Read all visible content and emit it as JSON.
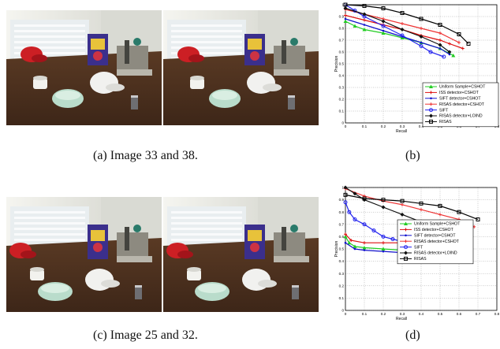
{
  "captions": {
    "a": "(a) Image 33 and 38.",
    "b": "(b)",
    "c": "(c) Image 25 and 32.",
    "d": "(d)"
  },
  "colors": {
    "wall": "#ecece6",
    "table": "#3d2618",
    "bowl": "#b9dccb",
    "cap_red": "#cc1f24",
    "cap_white": "#f1f1ef",
    "cereal_box": "#3b2f8c"
  },
  "chart_data": [
    {
      "type": "line",
      "xlabel": "Recall",
      "ylabel": "Precision",
      "xlim": [
        0,
        0.8
      ],
      "ylim": [
        0,
        1
      ],
      "xticks": [
        "0",
        "0.1",
        "0.2",
        "0.3",
        "0.4",
        "0.5",
        "0.6",
        "0.7",
        "0.8"
      ],
      "yticks": [
        "0",
        "0.1",
        "0.2",
        "0.3",
        "0.4",
        "0.5",
        "0.6",
        "0.7",
        "0.8",
        "0.9",
        "1"
      ],
      "grid": true,
      "legend_position": "bottom-right",
      "series": [
        {
          "name": "Uniform Sample+CSHOT",
          "color": "#22cc22",
          "marker": "triangle",
          "points": [
            [
              0.0,
              0.86
            ],
            [
              0.05,
              0.82
            ],
            [
              0.1,
              0.79
            ],
            [
              0.2,
              0.76
            ],
            [
              0.3,
              0.72
            ],
            [
              0.4,
              0.68
            ],
            [
              0.5,
              0.63
            ],
            [
              0.57,
              0.57
            ]
          ]
        },
        {
          "name": "ISS detector+CSHOT",
          "color": "#dd1111",
          "marker": "plus",
          "points": [
            [
              0.0,
              0.91
            ],
            [
              0.1,
              0.87
            ],
            [
              0.2,
              0.83
            ],
            [
              0.3,
              0.79
            ],
            [
              0.4,
              0.74
            ],
            [
              0.5,
              0.7
            ],
            [
              0.55,
              0.67
            ],
            [
              0.62,
              0.63
            ]
          ]
        },
        {
          "name": "SIFT detector+CSHOT",
          "color": "#1111cc",
          "marker": "dot",
          "points": [
            [
              0.0,
              0.88
            ],
            [
              0.1,
              0.83
            ],
            [
              0.2,
              0.78
            ],
            [
              0.3,
              0.73
            ],
            [
              0.4,
              0.68
            ],
            [
              0.5,
              0.63
            ],
            [
              0.55,
              0.58
            ]
          ]
        },
        {
          "name": "RISAS detector+CSHOT",
          "color": "#ee3333",
          "marker": "plus",
          "points": [
            [
              0.0,
              0.96
            ],
            [
              0.1,
              0.92
            ],
            [
              0.2,
              0.88
            ],
            [
              0.3,
              0.84
            ],
            [
              0.4,
              0.8
            ],
            [
              0.5,
              0.76
            ],
            [
              0.6,
              0.68
            ]
          ]
        },
        {
          "name": "SIFT",
          "color": "#2222ee",
          "marker": "circle",
          "points": [
            [
              0.0,
              1.0
            ],
            [
              0.05,
              0.95
            ],
            [
              0.1,
              0.9
            ],
            [
              0.2,
              0.82
            ],
            [
              0.3,
              0.74
            ],
            [
              0.4,
              0.65
            ],
            [
              0.45,
              0.6
            ],
            [
              0.52,
              0.56
            ]
          ]
        },
        {
          "name": "RISAS detector+LOIND",
          "color": "#111111",
          "marker": "diamond",
          "points": [
            [
              0.0,
              0.97
            ],
            [
              0.1,
              0.92
            ],
            [
              0.2,
              0.86
            ],
            [
              0.3,
              0.79
            ],
            [
              0.4,
              0.73
            ],
            [
              0.5,
              0.66
            ],
            [
              0.55,
              0.6
            ]
          ]
        },
        {
          "name": "RISAS",
          "color": "#000000",
          "marker": "square",
          "points": [
            [
              0.0,
              1.0
            ],
            [
              0.1,
              0.99
            ],
            [
              0.2,
              0.97
            ],
            [
              0.3,
              0.93
            ],
            [
              0.4,
              0.88
            ],
            [
              0.5,
              0.83
            ],
            [
              0.6,
              0.75
            ],
            [
              0.65,
              0.67
            ]
          ]
        }
      ]
    },
    {
      "type": "line",
      "xlabel": "Recall",
      "ylabel": "Precision",
      "xlim": [
        0,
        0.8
      ],
      "ylim": [
        0,
        1
      ],
      "xticks": [
        "0",
        "0.1",
        "0.2",
        "0.3",
        "0.4",
        "0.5",
        "0.6",
        "0.7",
        "0.8"
      ],
      "yticks": [
        "0",
        "0.1",
        "0.2",
        "0.3",
        "0.4",
        "0.5",
        "0.6",
        "0.7",
        "0.8",
        "0.9",
        "1"
      ],
      "grid": true,
      "legend_position": "bottom-left",
      "series": [
        {
          "name": "Uniform Sample+CSHOT",
          "color": "#22cc22",
          "marker": "triangle",
          "points": [
            [
              0.0,
              0.6
            ],
            [
              0.02,
              0.55
            ],
            [
              0.05,
              0.52
            ],
            [
              0.1,
              0.51
            ],
            [
              0.2,
              0.5
            ],
            [
              0.3,
              0.49
            ],
            [
              0.38,
              0.48
            ]
          ]
        },
        {
          "name": "ISS detector+CSHOT",
          "color": "#dd1111",
          "marker": "plus",
          "points": [
            [
              0.0,
              0.62
            ],
            [
              0.03,
              0.57
            ],
            [
              0.1,
              0.55
            ],
            [
              0.2,
              0.55
            ],
            [
              0.3,
              0.55
            ],
            [
              0.4,
              0.54
            ],
            [
              0.5,
              0.54
            ],
            [
              0.55,
              0.53
            ]
          ]
        },
        {
          "name": "SIFT detector+CSHOT",
          "color": "#1111cc",
          "marker": "dot",
          "points": [
            [
              0.0,
              0.55
            ],
            [
              0.05,
              0.5
            ],
            [
              0.1,
              0.49
            ],
            [
              0.2,
              0.48
            ],
            [
              0.3,
              0.47
            ],
            [
              0.4,
              0.46
            ],
            [
              0.46,
              0.45
            ]
          ]
        },
        {
          "name": "RISAS detector+CSHOT",
          "color": "#ee3333",
          "marker": "plus",
          "points": [
            [
              0.0,
              0.99
            ],
            [
              0.1,
              0.93
            ],
            [
              0.2,
              0.89
            ],
            [
              0.3,
              0.86
            ],
            [
              0.4,
              0.82
            ],
            [
              0.5,
              0.78
            ],
            [
              0.6,
              0.74
            ],
            [
              0.68,
              0.68
            ]
          ]
        },
        {
          "name": "SIFT",
          "color": "#2222ee",
          "marker": "circle",
          "points": [
            [
              0.0,
              0.88
            ],
            [
              0.02,
              0.8
            ],
            [
              0.05,
              0.74
            ],
            [
              0.1,
              0.7
            ],
            [
              0.15,
              0.65
            ],
            [
              0.2,
              0.6
            ],
            [
              0.25,
              0.58
            ],
            [
              0.3,
              0.56
            ],
            [
              0.35,
              0.52
            ],
            [
              0.4,
              0.48
            ],
            [
              0.45,
              0.45
            ],
            [
              0.5,
              0.43
            ]
          ]
        },
        {
          "name": "RISAS detector+LOIND",
          "color": "#111111",
          "marker": "diamond",
          "points": [
            [
              0.0,
              1.0
            ],
            [
              0.05,
              0.95
            ],
            [
              0.1,
              0.9
            ],
            [
              0.2,
              0.84
            ],
            [
              0.3,
              0.78
            ],
            [
              0.4,
              0.72
            ],
            [
              0.5,
              0.65
            ],
            [
              0.58,
              0.6
            ]
          ]
        },
        {
          "name": "RISAS",
          "color": "#000000",
          "marker": "square",
          "points": [
            [
              0.0,
              0.94
            ],
            [
              0.1,
              0.91
            ],
            [
              0.2,
              0.9
            ],
            [
              0.3,
              0.89
            ],
            [
              0.4,
              0.87
            ],
            [
              0.5,
              0.85
            ],
            [
              0.6,
              0.8
            ],
            [
              0.7,
              0.74
            ]
          ]
        }
      ]
    }
  ]
}
